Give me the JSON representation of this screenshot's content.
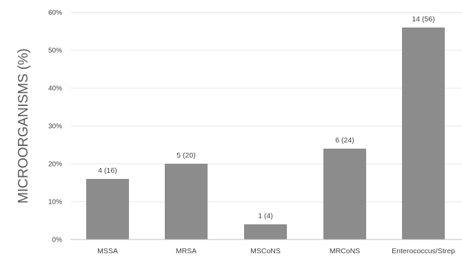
{
  "chart_data": {
    "type": "bar",
    "ylabel": "MICROORGANISMS (%)",
    "xlabel": "",
    "title": "",
    "ylim": [
      0,
      60
    ],
    "yticks": [
      "0%",
      "10%",
      "20%",
      "30%",
      "40%",
      "50%",
      "60%"
    ],
    "grid": true,
    "legend": "none",
    "categories": [
      "MSSA",
      "MRSA",
      "MSCoNS",
      "MRCoNS",
      "Enterococcus/Strep"
    ],
    "values": [
      16,
      20,
      4,
      24,
      56
    ],
    "data_labels": [
      "4 (16)",
      "5 (20)",
      "1 (4)",
      "6 (24)",
      "14 (56)"
    ],
    "bar_color": "#8c8c8c"
  }
}
